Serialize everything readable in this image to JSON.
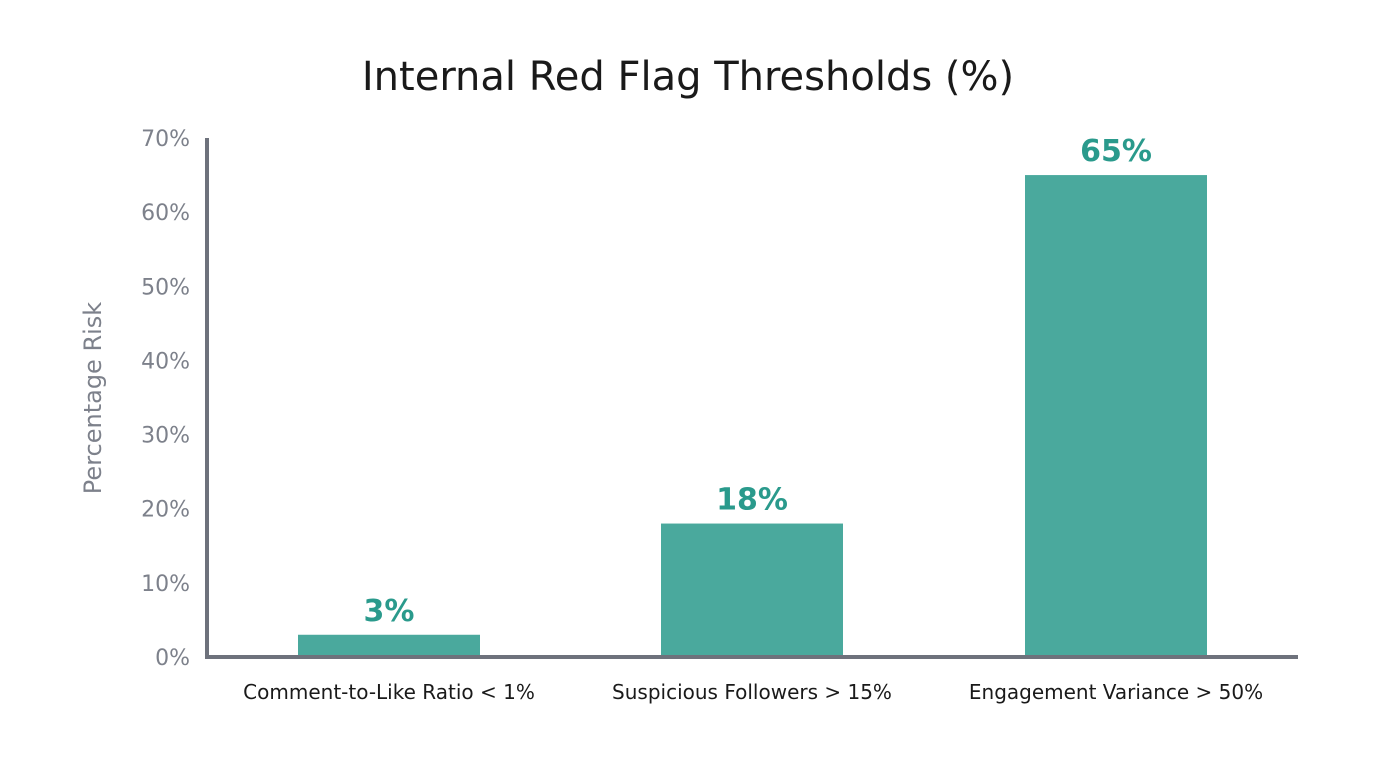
{
  "chart_data": {
    "type": "bar",
    "title": "Internal Red Flag Thresholds (%)",
    "xlabel": "",
    "ylabel": "Percentage Risk",
    "categories": [
      "Comment-to-Like Ratio < 1%",
      "Suspicious Followers > 15%",
      "Engagement Variance > 50%"
    ],
    "values": [
      3,
      18,
      65
    ],
    "data_labels": [
      "3%",
      "18%",
      "65%"
    ],
    "ylim": [
      0,
      70
    ],
    "yticks": [
      0,
      10,
      20,
      30,
      40,
      50,
      60,
      70
    ],
    "ytick_labels": [
      "0%",
      "10%",
      "20%",
      "30%",
      "40%",
      "50%",
      "60%",
      "70%"
    ],
    "grid": false,
    "colors": {
      "bar": "#4aa99d",
      "label": "#2a9a8c",
      "axis": "#6e727c"
    }
  }
}
